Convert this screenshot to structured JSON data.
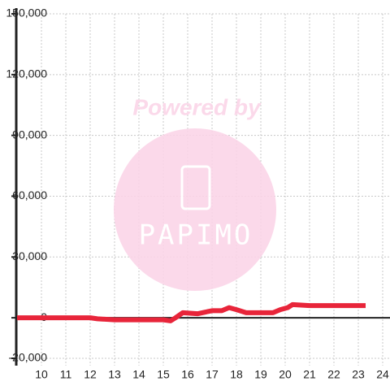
{
  "chart_data": {
    "type": "line",
    "watermark": {
      "title": "Powered by",
      "logo": "PAPIMO"
    },
    "x": [
      9,
      10,
      11,
      12,
      12.3,
      13,
      14,
      15,
      15.3,
      15.5,
      15.8,
      16.4,
      17,
      17.4,
      17.7,
      18,
      18.4,
      19,
      19.5,
      19.8,
      20.1,
      20.3,
      21,
      22,
      23.3
    ],
    "series": [
      {
        "color": "#e8253a",
        "values": [
          0,
          0,
          0,
          0,
          -500,
          -1000,
          -1000,
          -1000,
          -1500,
          0,
          2500,
          2000,
          3500,
          3500,
          5000,
          4000,
          2500,
          2500,
          2500,
          4000,
          5000,
          6500,
          6000,
          6000,
          6000
        ]
      }
    ],
    "xlim": [
      9,
      24.3
    ],
    "xticks": [
      10,
      11,
      12,
      13,
      14,
      15,
      16,
      17,
      18,
      19,
      20,
      21,
      22,
      23,
      24
    ],
    "ylim": [
      -20000,
      150000
    ],
    "yticks": [
      {
        "value": -20000,
        "label": "-20,000"
      },
      0,
      {
        "value": 30000,
        "label": "30,000"
      },
      {
        "value": 60000,
        "label": "60,000"
      },
      {
        "value": 90000,
        "label": "90,000"
      },
      {
        "value": 120000,
        "label": "120,000"
      },
      {
        "value": 150000,
        "label": "150,000"
      }
    ],
    "grid": true
  }
}
